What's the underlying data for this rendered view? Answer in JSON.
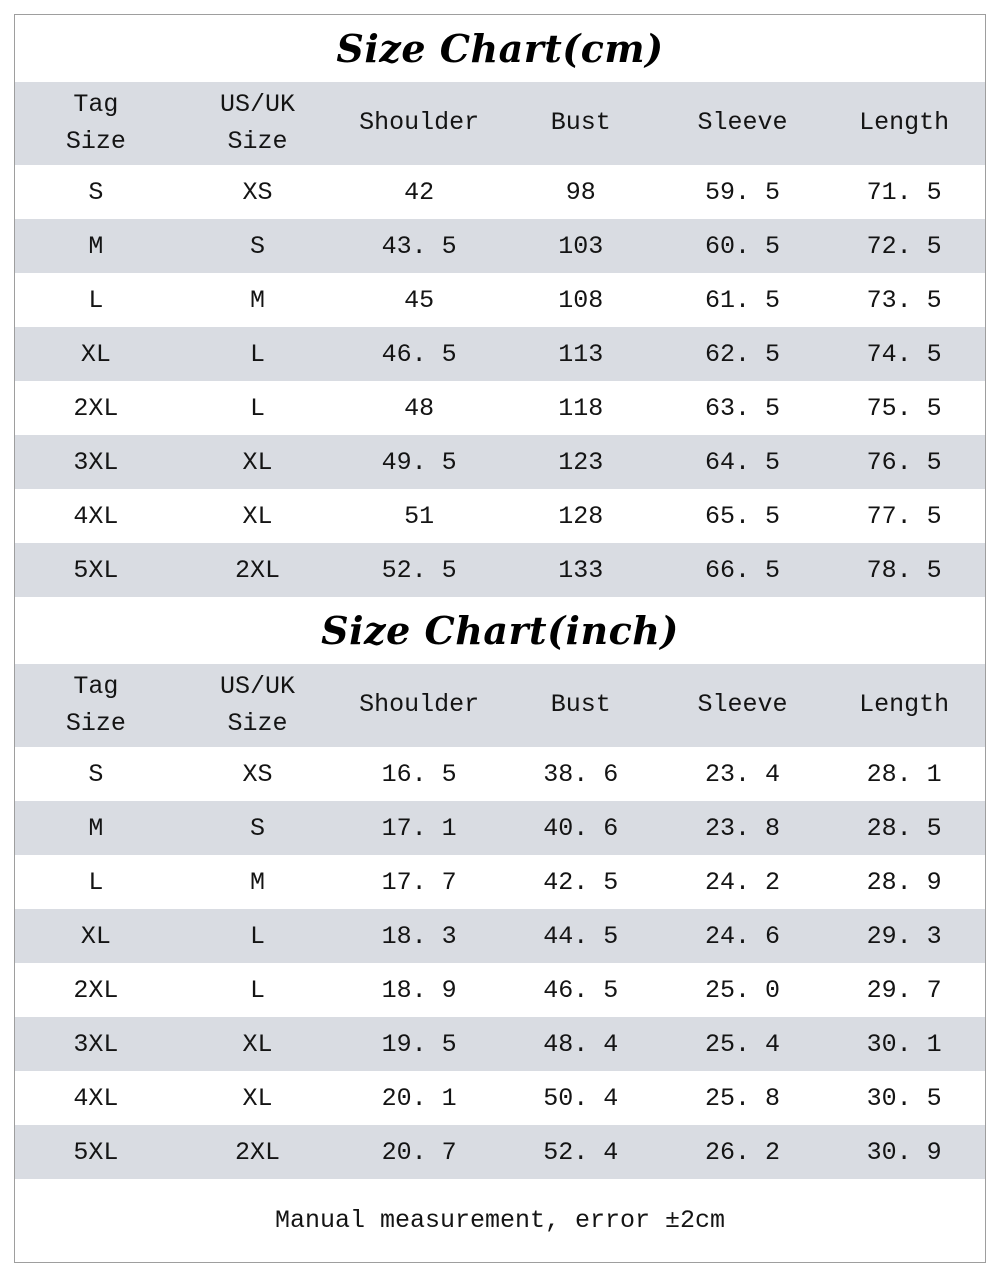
{
  "charts": [
    {
      "title": "Size Chart(cm)",
      "headers": [
        "Tag\nSize",
        "US/UK\nSize",
        "Shoulder",
        "Bust",
        "Sleeve",
        "Length"
      ],
      "rows": [
        [
          "S",
          "XS",
          "42",
          "98",
          "59. 5",
          "71. 5"
        ],
        [
          "M",
          "S",
          "43. 5",
          "103",
          "60. 5",
          "72. 5"
        ],
        [
          "L",
          "M",
          "45",
          "108",
          "61. 5",
          "73. 5"
        ],
        [
          "XL",
          "L",
          "46. 5",
          "113",
          "62. 5",
          "74. 5"
        ],
        [
          "2XL",
          "L",
          "48",
          "118",
          "63. 5",
          "75. 5"
        ],
        [
          "3XL",
          "XL",
          "49. 5",
          "123",
          "64. 5",
          "76. 5"
        ],
        [
          "4XL",
          "XL",
          "51",
          "128",
          "65. 5",
          "77. 5"
        ],
        [
          "5XL",
          "2XL",
          "52. 5",
          "133",
          "66. 5",
          "78. 5"
        ]
      ]
    },
    {
      "title": "Size Chart(inch)",
      "headers": [
        "Tag\nSize",
        "US/UK\nSize",
        "Shoulder",
        "Bust",
        "Sleeve",
        "Length"
      ],
      "rows": [
        [
          "S",
          "XS",
          "16. 5",
          "38. 6",
          "23. 4",
          "28. 1"
        ],
        [
          "M",
          "S",
          "17. 1",
          "40. 6",
          "23. 8",
          "28. 5"
        ],
        [
          "L",
          "M",
          "17. 7",
          "42. 5",
          "24. 2",
          "28. 9"
        ],
        [
          "XL",
          "L",
          "18. 3",
          "44. 5",
          "24. 6",
          "29. 3"
        ],
        [
          "2XL",
          "L",
          "18. 9",
          "46. 5",
          "25. 0",
          "29. 7"
        ],
        [
          "3XL",
          "XL",
          "19. 5",
          "48. 4",
          "25. 4",
          "30. 1"
        ],
        [
          "4XL",
          "XL",
          "20. 1",
          "50. 4",
          "25. 8",
          "30. 5"
        ],
        [
          "5XL",
          "2XL",
          "20. 7",
          "52. 4",
          "26. 2",
          "30. 9"
        ]
      ]
    }
  ],
  "footer": {
    "note": "Manual measurement, error ±2cm"
  },
  "colors": {
    "row_stripe": "#d9dce2",
    "background": "#ffffff",
    "frame_border": "#9e9e9e",
    "text": "#141414"
  }
}
